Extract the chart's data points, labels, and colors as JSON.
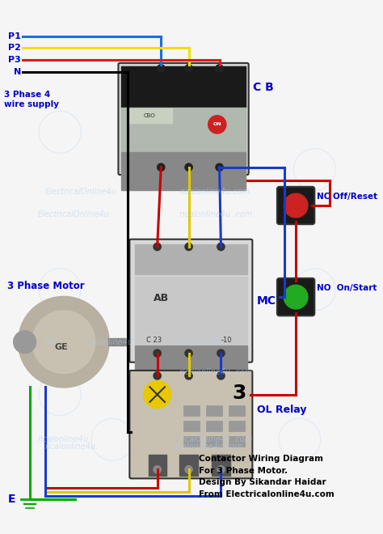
{
  "bg_color": "#f5f5f5",
  "title_lines": [
    "Contactor Wiring Diagram",
    "For 3 Phase Motor.",
    "Design By Sikandar Haidar",
    "From Electricalonline4u.com"
  ],
  "watermark": "ElectricalOnline4u.com.",
  "phase_labels": [
    "P1",
    "P2",
    "P3",
    "N"
  ],
  "phase_colors": [
    "#1a6ee0",
    "#f0e000",
    "#e01a1a",
    "#000000"
  ],
  "supply_label": "3 Phase 4\nwire supply",
  "cb_label": "C B",
  "mc_label": "MC",
  "ol_label": "OL Relay",
  "nc_label": "NC Off/Reset",
  "no_label": "NO  On/Start",
  "motor_label": "3 Phase Motor",
  "earth_label": "E",
  "label_color": "#0000cc",
  "wire_red": "#cc0000",
  "wire_blue": "#1a3acc",
  "wire_yellow": "#e0c800",
  "wire_black": "#000000",
  "wire_green": "#00aa00",
  "text_color_black": "#000000",
  "watermark_color": "#b0d0f0"
}
